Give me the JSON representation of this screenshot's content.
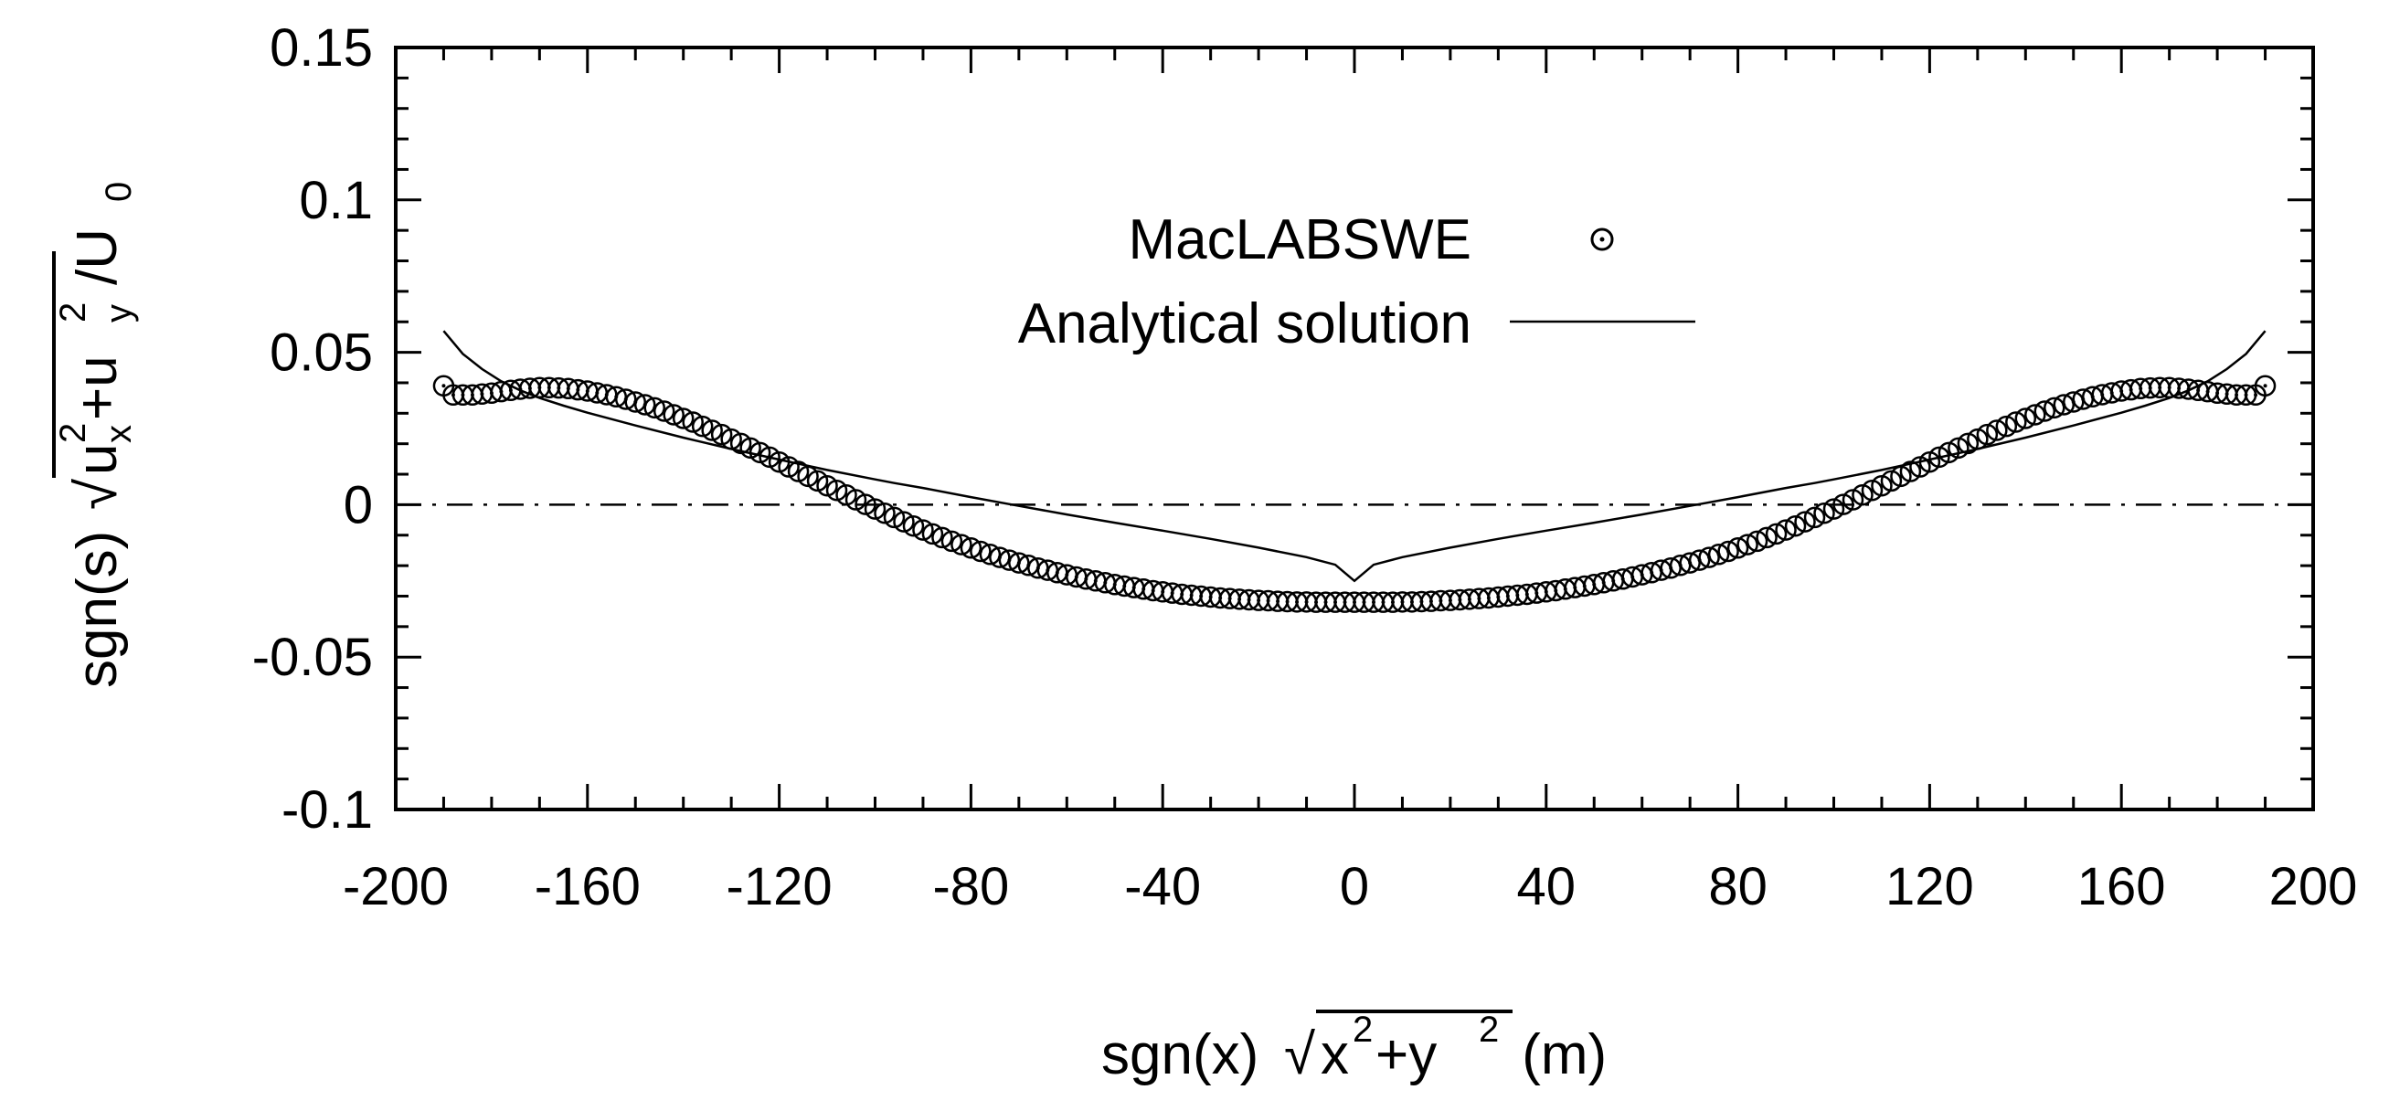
{
  "chart_data": {
    "type": "scatter",
    "xlim": [
      -200,
      200
    ],
    "ylim": [
      -0.1,
      0.15
    ],
    "x_ticks": [
      -200,
      -160,
      -120,
      -80,
      -40,
      0,
      40,
      80,
      120,
      160,
      200
    ],
    "x_tick_labels": [
      "-200",
      "-160",
      "-120",
      "-80",
      "-40",
      "0",
      "40",
      "80",
      "120",
      "160",
      "200"
    ],
    "y_ticks": [
      -0.1,
      -0.05,
      0,
      0.05,
      0.1,
      0.15
    ],
    "y_tick_labels": [
      "-0.1",
      "-0.05",
      "0",
      "0.05",
      "0.1",
      "0.15"
    ],
    "xlabel": {
      "prefix": "sgn(x)",
      "radical": "√",
      "rad_parts": [
        "x",
        "2",
        "+y",
        "2"
      ],
      "suffix": " (m)"
    },
    "ylabel": {
      "prefix": "sgn(s)",
      "radical": "√",
      "rad_parts": [
        "u",
        "x",
        "2",
        "+u",
        "y",
        "2"
      ],
      "suffix": "/U",
      "suffix_sub": "0"
    },
    "grid": false,
    "legend_position": "top-center",
    "reference_line": {
      "y": 0,
      "style": "dash-dot"
    },
    "series": [
      {
        "name": "MacLABSWE",
        "kind": "markers",
        "marker": "circle-dot",
        "x": [
          -190,
          -188,
          -186,
          -184,
          -182,
          -180,
          -178,
          -176,
          -174,
          -172,
          -170,
          -168,
          -166,
          -164,
          -162,
          -160,
          -158,
          -156,
          -154,
          -152,
          -150,
          -148,
          -146,
          -144,
          -142,
          -140,
          -138,
          -136,
          -134,
          -132,
          -130,
          -128,
          -126,
          -124,
          -122,
          -120,
          -118,
          -116,
          -114,
          -112,
          -110,
          -108,
          -106,
          -104,
          -102,
          -100,
          -98,
          -96,
          -94,
          -92,
          -90,
          -88,
          -86,
          -84,
          -82,
          -80,
          -78,
          -76,
          -74,
          -72,
          -70,
          -68,
          -66,
          -64,
          -62,
          -60,
          -58,
          -56,
          -54,
          -52,
          -50,
          -48,
          -46,
          -44,
          -42,
          -40,
          -38,
          -36,
          -34,
          -32,
          -30,
          -28,
          -26,
          -24,
          -22,
          -20,
          -18,
          -16,
          -14,
          -12,
          -10,
          -8,
          -6,
          -4,
          -2,
          0,
          2,
          4,
          6,
          8,
          10,
          12,
          14,
          16,
          18,
          20,
          22,
          24,
          26,
          28,
          30,
          32,
          34,
          36,
          38,
          40,
          42,
          44,
          46,
          48,
          50,
          52,
          54,
          56,
          58,
          60,
          62,
          64,
          66,
          68,
          70,
          72,
          74,
          76,
          78,
          80,
          82,
          84,
          86,
          88,
          90,
          92,
          94,
          96,
          98,
          100,
          102,
          104,
          106,
          108,
          110,
          112,
          114,
          116,
          118,
          120,
          122,
          124,
          126,
          128,
          130,
          132,
          134,
          136,
          138,
          140,
          142,
          144,
          146,
          148,
          150,
          152,
          154,
          156,
          158,
          160,
          162,
          164,
          166,
          168,
          170,
          172,
          174,
          176,
          178,
          180,
          182,
          184,
          186,
          188,
          190
        ],
        "y": [
          0.039,
          0.036,
          0.036,
          0.036,
          0.0363,
          0.0366,
          0.0371,
          0.0375,
          0.0379,
          0.0382,
          0.0384,
          0.0384,
          0.0383,
          0.0381,
          0.0377,
          0.0373,
          0.0367,
          0.0361,
          0.0354,
          0.0346,
          0.0337,
          0.0328,
          0.0318,
          0.0307,
          0.0295,
          0.0283,
          0.0271,
          0.0257,
          0.0244,
          0.023,
          0.0215,
          0.0201,
          0.0186,
          0.0171,
          0.0156,
          0.014,
          0.0124,
          0.0109,
          0.0093,
          0.0078,
          0.0062,
          0.0047,
          0.0032,
          0.0016,
          0.0001,
          -0.0014,
          -0.0028,
          -0.0042,
          -0.0056,
          -0.007,
          -0.0083,
          -0.0096,
          -0.0108,
          -0.012,
          -0.0131,
          -0.0142,
          -0.0153,
          -0.0163,
          -0.0173,
          -0.0182,
          -0.0191,
          -0.0199,
          -0.0208,
          -0.0215,
          -0.0223,
          -0.023,
          -0.0237,
          -0.0244,
          -0.025,
          -0.0256,
          -0.0262,
          -0.0267,
          -0.0272,
          -0.0277,
          -0.0282,
          -0.0286,
          -0.029,
          -0.0294,
          -0.0297,
          -0.03,
          -0.0303,
          -0.0306,
          -0.0308,
          -0.031,
          -0.0312,
          -0.0314,
          -0.0315,
          -0.0317,
          -0.0318,
          -0.0319,
          -0.0319,
          -0.032,
          -0.032,
          -0.032,
          -0.032,
          -0.032,
          -0.032,
          -0.032,
          -0.032,
          -0.032,
          -0.0319,
          -0.0319,
          -0.0318,
          -0.0317,
          -0.0315,
          -0.0314,
          -0.0312,
          -0.031,
          -0.0308,
          -0.0306,
          -0.0303,
          -0.03,
          -0.0297,
          -0.0294,
          -0.029,
          -0.0286,
          -0.0282,
          -0.0277,
          -0.0272,
          -0.0267,
          -0.0262,
          -0.0256,
          -0.025,
          -0.0244,
          -0.0237,
          -0.023,
          -0.0223,
          -0.0215,
          -0.0208,
          -0.0199,
          -0.0191,
          -0.0182,
          -0.0173,
          -0.0163,
          -0.0153,
          -0.0142,
          -0.0131,
          -0.012,
          -0.0108,
          -0.0096,
          -0.0083,
          -0.007,
          -0.0056,
          -0.0042,
          -0.0028,
          -0.0014,
          0.0001,
          0.0016,
          0.0032,
          0.0047,
          0.0062,
          0.0078,
          0.0093,
          0.0109,
          0.0124,
          0.014,
          0.0156,
          0.0171,
          0.0186,
          0.0201,
          0.0215,
          0.023,
          0.0244,
          0.0257,
          0.0271,
          0.0283,
          0.0295,
          0.0307,
          0.0318,
          0.0328,
          0.0337,
          0.0346,
          0.0354,
          0.0361,
          0.0367,
          0.0373,
          0.0377,
          0.0381,
          0.0383,
          0.0384,
          0.0384,
          0.0382,
          0.0379,
          0.0375,
          0.0371,
          0.0366,
          0.0363,
          0.036,
          0.036,
          0.036,
          0.039
        ]
      },
      {
        "name": "Analytical solution",
        "kind": "line",
        "x": [
          -190,
          -186,
          -182,
          -178,
          -174,
          -170,
          -165,
          -160,
          -150,
          -140,
          -130,
          -120,
          -110,
          -100,
          -96,
          -90,
          -80,
          -70,
          -60,
          -50,
          -40,
          -30,
          -20,
          -10,
          -4,
          0,
          4,
          10,
          20,
          30,
          40,
          50,
          60,
          70,
          80,
          90,
          96,
          100,
          110,
          120,
          130,
          140,
          150,
          160,
          165,
          170,
          174,
          178,
          182,
          186,
          190
        ],
        "y": [
          0.057,
          0.0495,
          0.0445,
          0.0405,
          0.0375,
          0.035,
          0.0325,
          0.0302,
          0.026,
          0.022,
          0.0183,
          0.0148,
          0.0114,
          0.0083,
          0.0071,
          0.0055,
          0.0025,
          -0.0004,
          -0.0032,
          -0.0059,
          -0.0085,
          -0.0112,
          -0.0141,
          -0.0172,
          -0.0197,
          -0.025,
          -0.0197,
          -0.0172,
          -0.0141,
          -0.0112,
          -0.0085,
          -0.0059,
          -0.0032,
          -0.0004,
          0.0025,
          0.0055,
          0.0071,
          0.0083,
          0.0114,
          0.0148,
          0.0183,
          0.022,
          0.026,
          0.0302,
          0.0325,
          0.035,
          0.0375,
          0.0405,
          0.0445,
          0.0495,
          0.057
        ]
      }
    ]
  }
}
